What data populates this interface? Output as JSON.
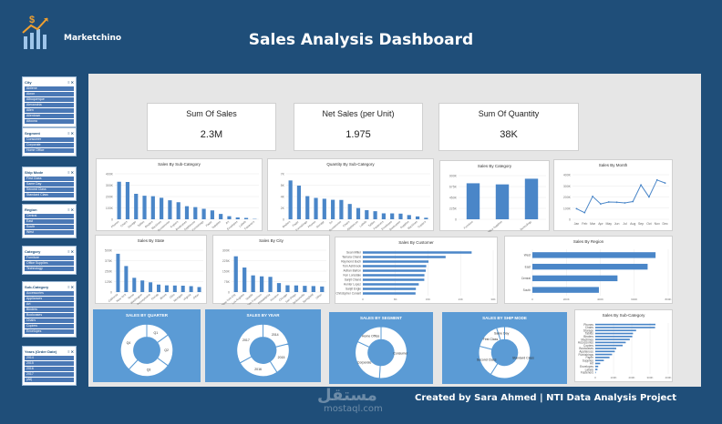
{
  "header": {
    "title": "Sales Analysis Dashboard",
    "brand": "Marketchino"
  },
  "footer": {
    "credit": "Created by Sara Ahmed | NTI Data Analysis Project",
    "watermark": "مستقل",
    "watermark_url": "mostaql.com"
  },
  "kpis": [
    {
      "label": "Sum Of Sales",
      "value": "2.3M"
    },
    {
      "label": "Net Sales (per Unit)",
      "value": "1.975"
    },
    {
      "label": "Sum Of Quantity",
      "value": "38K"
    }
  ],
  "slicers": [
    {
      "title": "City",
      "items": [
        "Abilene",
        "Akron",
        "Albuquerque",
        "Alexandria",
        "Allen",
        "Allentown",
        "Altoona"
      ]
    },
    {
      "title": "Segment",
      "items": [
        "Consumer",
        "Corporate",
        "Home Office"
      ]
    },
    {
      "title": "Ship Mode",
      "items": [
        "First Class",
        "Same Day",
        "Second Class",
        "Standard Class"
      ]
    },
    {
      "title": "Region",
      "items": [
        "Central",
        "East",
        "South",
        "West"
      ]
    },
    {
      "title": "Category",
      "items": [
        "Furniture",
        "Office Supplies",
        "Technology"
      ]
    },
    {
      "title": "Sub-Category",
      "items": [
        "Accessories",
        "Appliances",
        "Art",
        "Binders",
        "Bookcases",
        "Chairs",
        "Copiers",
        "Envelopes"
      ]
    },
    {
      "title": "Years (Order Date)",
      "items": [
        "2014",
        "2015",
        "2016",
        "2017",
        "(All)"
      ]
    }
  ],
  "chart_data": [
    {
      "id": "sub-category",
      "type": "bar",
      "title": "Sales By Sub-Category",
      "categories": [
        "Phones",
        "Chairs",
        "Storage",
        "Tables",
        "Binders",
        "Machines",
        "Accessories",
        "Copiers",
        "Bookcases",
        "Appliances",
        "Furnishings",
        "Paper",
        "Supplies",
        "Art",
        "Envelopes",
        "Labels",
        "Fasteners"
      ],
      "values": [
        330000,
        328000,
        224000,
        207000,
        203000,
        189000,
        167000,
        150000,
        115000,
        107000,
        92000,
        78000,
        47000,
        27000,
        16000,
        12000,
        3000
      ],
      "ylim": [
        0,
        400000
      ]
    },
    {
      "id": "qty-sub-category",
      "type": "bar",
      "title": "Quantity By Sub-Category",
      "categories": [
        "Binders",
        "Paper",
        "Furnishings",
        "Phones",
        "Storage",
        "Art",
        "Accessories",
        "Chairs",
        "Appliances",
        "Labels",
        "Tables",
        "Fasteners",
        "Envelopes",
        "Bookcases",
        "Supplies",
        "Machines",
        "Copiers"
      ],
      "values": [
        5974,
        5178,
        3563,
        3289,
        3158,
        3000,
        2976,
        2356,
        1729,
        1400,
        1241,
        914,
        906,
        868,
        647,
        440,
        234
      ],
      "ylim": [
        0,
        7000
      ]
    },
    {
      "id": "category",
      "type": "bar",
      "title": "Sales By Category",
      "categories": [
        "Furniture",
        "Office Supplies",
        "Technology"
      ],
      "values": [
        742000,
        719000,
        836000
      ],
      "ylim": [
        0,
        900000
      ]
    },
    {
      "id": "month",
      "type": "line",
      "title": "Sales By Month",
      "categories": [
        "Jan",
        "Feb",
        "Mar",
        "Apr",
        "May",
        "Jun",
        "Jul",
        "Aug",
        "Sep",
        "Oct",
        "Nov",
        "Dec"
      ],
      "values": [
        94925,
        59751,
        205005,
        137762,
        155029,
        152718,
        147238,
        159044,
        307650,
        200323,
        352461,
        325293
      ],
      "ylim": [
        0,
        400000
      ]
    },
    {
      "id": "state",
      "type": "bar",
      "title": "Sales By State",
      "categories": [
        "California",
        "New York",
        "Texas",
        "Washington",
        "Pennsylvania",
        "Florida",
        "Illinois",
        "Ohio",
        "Michigan",
        "Virginia",
        "Other"
      ],
      "values": [
        457688,
        310876,
        170188,
        138641,
        116512,
        89474,
        80166,
        78258,
        76270,
        70637,
        60000
      ],
      "ylim": [
        0,
        500000
      ]
    },
    {
      "id": "city",
      "type": "bar",
      "title": "Sales By City",
      "categories": [
        "New York City",
        "Los Angeles",
        "Seattle",
        "San Francisco",
        "Philadelphia",
        "Houston",
        "Chicago",
        "San Diego",
        "Jacksonville",
        "Springfield",
        "Other"
      ],
      "values": [
        256368,
        175851,
        119541,
        112669,
        109077,
        64505,
        48540,
        47521,
        44713,
        43054,
        40000
      ],
      "ylim": [
        0,
        300000
      ]
    },
    {
      "id": "customer",
      "type": "bar",
      "title": "Sales By Customer",
      "categories": [
        "Sean Miller",
        "Tamara Chand",
        "Raymond Buch",
        "Tom Ashbrook",
        "Adrian Barton",
        "Ken Lonsdale",
        "Sanjit Chand",
        "Hunter Lopez",
        "Sanjit Engle",
        "Christopher Conant"
      ],
      "values": [
        25043,
        19052,
        15117,
        14596,
        14474,
        14175,
        14142,
        12873,
        12209,
        12129
      ],
      "ylim": [
        0,
        30000
      ]
    },
    {
      "id": "region",
      "type": "bar",
      "title": "Sales By Region",
      "categories": [
        "West",
        "East",
        "Central",
        "South"
      ],
      "values": [
        725458,
        678781,
        501240,
        391722
      ],
      "ylim": [
        0,
        800000
      ]
    },
    {
      "id": "quarter",
      "type": "pie",
      "title": "SALES BY QUARTER",
      "categories": [
        "Q1",
        "Q2",
        "Q3",
        "Q4"
      ],
      "values": [
        15,
        20,
        27,
        38
      ]
    },
    {
      "id": "year",
      "type": "pie",
      "title": "SALES BY YEAR",
      "categories": [
        "2014",
        "2015",
        "2016",
        "2017"
      ],
      "values": [
        21,
        20,
        26,
        33
      ]
    },
    {
      "id": "segment",
      "type": "pie",
      "title": "SALES BY SEGMENT",
      "categories": [
        "Consumer",
        "Corporate",
        "Home Office"
      ],
      "values": [
        51,
        31,
        18
      ]
    },
    {
      "id": "shipmode",
      "type": "pie",
      "title": "SALES BY SHIP MODE",
      "categories": [
        "Standard Class",
        "Second Class",
        "First Class",
        "Same Day"
      ],
      "values": [
        59,
        20,
        16,
        5
      ]
    },
    {
      "id": "sub-category-h",
      "type": "bar",
      "title": "Sales By Sub-Category",
      "categories": [
        "Phones",
        "Chairs",
        "Storage",
        "Tables",
        "Binders",
        "Machines",
        "Accessories",
        "Copiers",
        "Bookcases",
        "Appliances",
        "Furnishings",
        "Paper",
        "Supplies",
        "Art",
        "Envelopes",
        "Labels",
        "Fasteners"
      ],
      "values": [
        330000,
        328000,
        224000,
        207000,
        203000,
        189000,
        167000,
        150000,
        115000,
        107000,
        92000,
        78000,
        47000,
        27000,
        16000,
        12000,
        3000
      ],
      "ylim": [
        0,
        400000
      ]
    }
  ],
  "colors": {
    "bar": "#4a86c8",
    "background": "#1f4e79",
    "card_blue": "#5b9bd5",
    "panel": "#e6e6e6"
  }
}
